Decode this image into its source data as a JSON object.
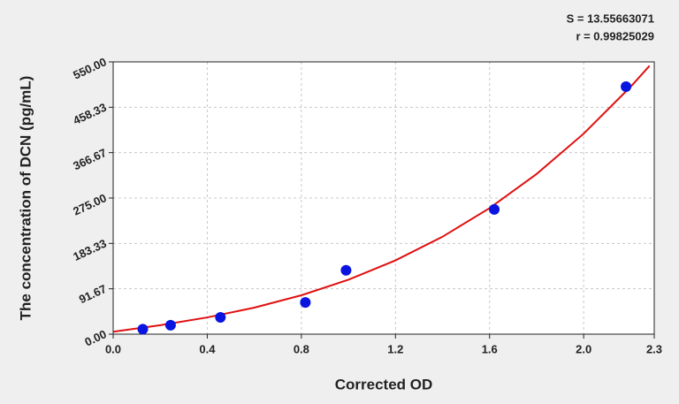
{
  "chart_data": {
    "type": "scatter",
    "annotations": [
      "S = 13.55663071",
      "r = 0.99825029"
    ],
    "x_label": "Corrected OD",
    "y_label": "The concentration of DCN (pg/mL)",
    "x": [
      0.126,
      0.244,
      0.456,
      0.817,
      0.99,
      1.62,
      2.18
    ],
    "values": [
      10,
      18,
      34,
      64,
      129,
      252,
      500
    ],
    "color": "#0a14e0",
    "curve": {
      "color": "#e01010",
      "x": [
        0,
        0.2,
        0.4,
        0.6,
        0.8,
        1.0,
        1.2,
        1.4,
        1.6,
        1.8,
        2.0,
        2.2,
        2.28
      ],
      "values": [
        5,
        18,
        33.8,
        53.6,
        78.6,
        110,
        149,
        196.8,
        254.6,
        323.6,
        405,
        500,
        542
      ]
    },
    "xlim": [
      0,
      2.3
    ],
    "xticks": [
      {
        "value": 0,
        "label": "0.0"
      },
      0.4,
      0.8,
      1.2,
      1.6,
      {
        "value": 2,
        "label": "2.0"
      },
      2.3
    ],
    "ylim": [
      0,
      550
    ],
    "yticks": [
      {
        "value": 0,
        "label": "0.00"
      },
      91.67,
      183.33,
      {
        "value": 275,
        "label": "275.00"
      },
      366.67,
      458.33,
      {
        "value": 550,
        "label": "550.00"
      }
    ],
    "grid": true
  }
}
